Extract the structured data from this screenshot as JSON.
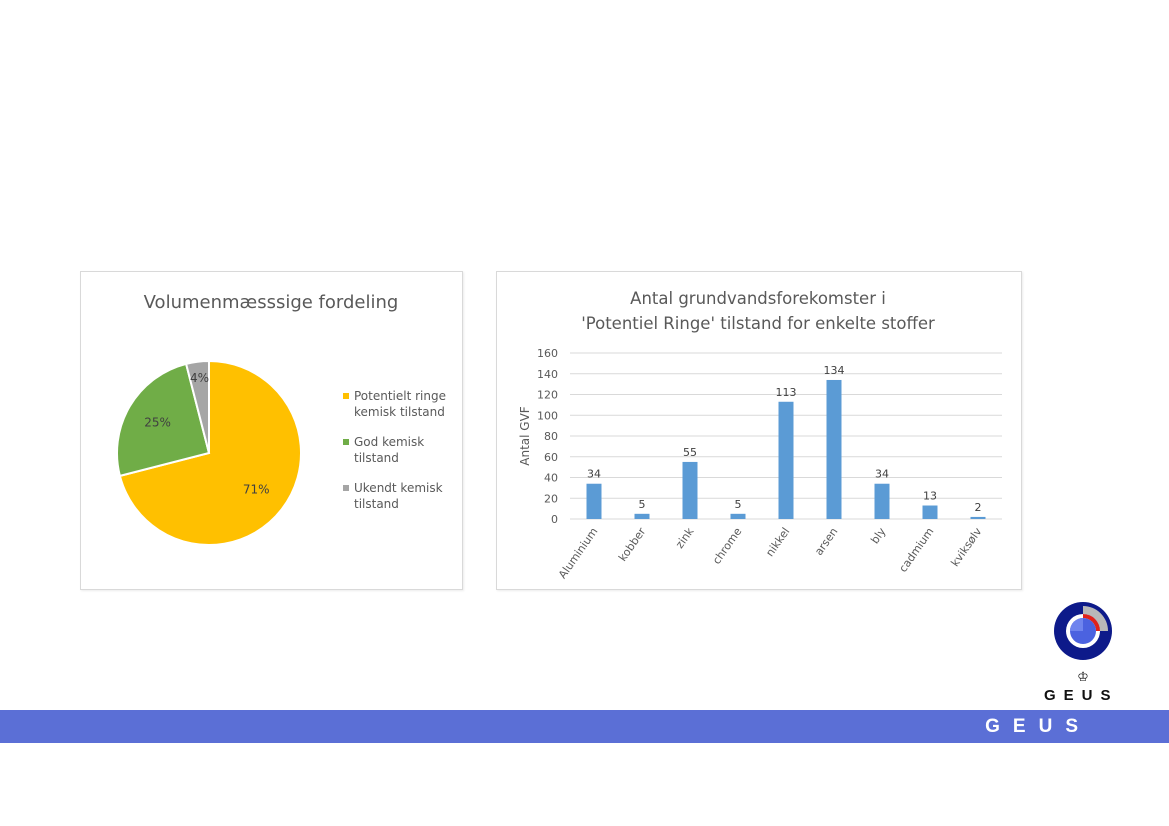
{
  "chart_data": [
    {
      "type": "pie",
      "title": "Volumenmæsssige fordeling",
      "slices": [
        {
          "label": "Potentielt ringe kemisk tilstand",
          "legend_lines": [
            "Potentielt ringe",
            "kemisk tilstand"
          ],
          "value": 71,
          "display": "71%",
          "color": "#ffc000"
        },
        {
          "label": "God kemisk tilstand",
          "legend_lines": [
            "God kemisk",
            "tilstand"
          ],
          "value": 25,
          "display": "25%",
          "color": "#70ad47"
        },
        {
          "label": "Ukendt kemisk tilstand",
          "legend_lines": [
            "Ukendt kemisk",
            "tilstand"
          ],
          "value": 4,
          "display": "4%",
          "color": "#a5a5a5"
        }
      ],
      "legend_position": "right"
    },
    {
      "type": "bar",
      "title_lines": [
        "Antal grundvandsforekomster i",
        "'Potentiel Ringe' tilstand for enkelte stoffer"
      ],
      "categories": [
        "Aluminium",
        "kobber",
        "zink",
        "chrome",
        "nikkel",
        "arsen",
        "bly",
        "cadmium",
        "kviksølv"
      ],
      "values": [
        34,
        5,
        55,
        5,
        113,
        134,
        34,
        13,
        2
      ],
      "ylabel": "Antal GVF",
      "ylim": [
        0,
        160
      ],
      "yticks": [
        0,
        20,
        40,
        60,
        80,
        100,
        120,
        140,
        160
      ],
      "grid": true,
      "bar_color": "#5b9bd5"
    }
  ],
  "logo": {
    "text": "GEUS",
    "crown": "♔"
  },
  "footer": {
    "text": "GEUS",
    "band_color": "#5b6fd6"
  }
}
